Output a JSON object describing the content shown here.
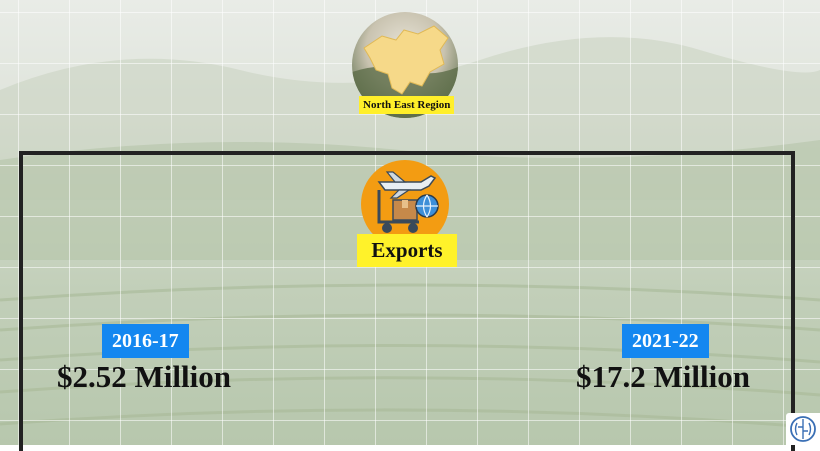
{
  "region": {
    "label": "North East Region",
    "icon": "north-east-map-icon"
  },
  "exports": {
    "label": "Exports",
    "icon": "export-logistics-icon",
    "icon_bg": "#f39c12"
  },
  "left": {
    "year": "2016-17",
    "amount": "$2.52 Million"
  },
  "right": {
    "year": "2021-22",
    "amount": "$17.2 Million"
  },
  "colors": {
    "highlight": "#fff22a",
    "badge": "#1487f0",
    "frame": "#222222"
  },
  "corner_logo": {
    "icon": "brain-logo-icon"
  }
}
